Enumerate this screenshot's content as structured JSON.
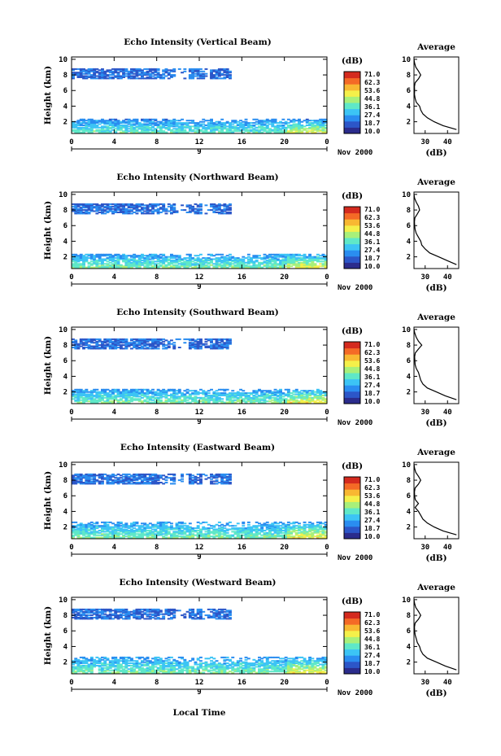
{
  "figure": {
    "x_label": "Local Time",
    "date_label": "Nov 2000",
    "day_label": "9",
    "y_label": "Height (km)",
    "colorbar_title": "(dB)",
    "colorbar_ticks": [
      "71.0",
      "62.3",
      "53.6",
      "44.8",
      "36.1",
      "27.4",
      "18.7",
      "10.0"
    ],
    "colorbar_colors": [
      "#2b2c8c",
      "#2c56c8",
      "#2a8df0",
      "#3cc4f5",
      "#5fe8c8",
      "#a8f07a",
      "#f4f04a",
      "#f8b832",
      "#f46a26",
      "#d42a1e"
    ],
    "avg_title": "Average",
    "avg_xlabel": "(dB)",
    "avg_xticks": [
      "30",
      "40"
    ]
  },
  "chart_data": [
    {
      "type": "heatmap",
      "title": "Echo Intensity (Vertical Beam)",
      "xlabel": "Local Time",
      "ylabel": "Height (km)",
      "x_ticks": [
        "0",
        "4",
        "8",
        "12",
        "16",
        "20",
        "0"
      ],
      "y_ticks": [
        "2",
        "4",
        "6",
        "8",
        "10"
      ],
      "xlim": [
        0,
        24
      ],
      "ylim": [
        0.5,
        10.3
      ],
      "zlim": [
        10.0,
        71.0
      ],
      "z_unit": "dB",
      "layers": [
        {
          "name": "upper",
          "t_start": 0,
          "t_end": 15,
          "h_low": 7.5,
          "h_high": 8.8,
          "db": 22
        },
        {
          "name": "lower",
          "t_start": 0,
          "t_end": 24,
          "h_low": 0.6,
          "h_high": 2.3,
          "db": 36
        }
      ],
      "average_profile": {
        "title": "Average",
        "xlabel": "(dB)",
        "xlim": [
          25,
          45
        ],
        "height": [
          1,
          1.5,
          2,
          2.5,
          3,
          3.5,
          4,
          4.5,
          5,
          5.5,
          6,
          6.5,
          7,
          7.5,
          8,
          8.5,
          9,
          9.5,
          10
        ],
        "db": [
          44,
          38,
          34,
          31,
          29,
          28,
          27.5,
          26,
          25.5,
          25.2,
          25.3,
          25.2,
          25.5,
          27,
          28,
          27,
          25.8,
          25.3,
          25
        ]
      }
    },
    {
      "type": "heatmap",
      "title": "Echo Intensity (Northward Beam)",
      "xlabel": "Local Time",
      "ylabel": "Height (km)",
      "x_ticks": [
        "0",
        "4",
        "8",
        "12",
        "16",
        "20",
        "0"
      ],
      "y_ticks": [
        "2",
        "4",
        "6",
        "8",
        "10"
      ],
      "xlim": [
        0,
        24
      ],
      "ylim": [
        0.5,
        10.3
      ],
      "zlim": [
        10.0,
        71.0
      ],
      "z_unit": "dB",
      "layers": [
        {
          "name": "upper",
          "t_start": 0,
          "t_end": 15,
          "h_low": 7.5,
          "h_high": 8.8,
          "db": 22
        },
        {
          "name": "lower",
          "t_start": 0,
          "t_end": 24,
          "h_low": 0.6,
          "h_high": 2.3,
          "db": 38
        }
      ],
      "average_profile": {
        "title": "Average",
        "xlabel": "(dB)",
        "xlim": [
          25,
          45
        ],
        "height": [
          1,
          1.5,
          2,
          2.5,
          3,
          3.5,
          4,
          4.5,
          5,
          5.5,
          6,
          6.5,
          7,
          7.5,
          8,
          8.5,
          9,
          9.5,
          10
        ],
        "db": [
          44,
          40,
          36,
          32,
          30,
          28.5,
          28,
          27,
          26,
          25.5,
          25.3,
          25.2,
          25.4,
          26.5,
          27.5,
          27,
          26,
          25.3,
          25
        ]
      }
    },
    {
      "type": "heatmap",
      "title": "Echo Intensity (Southward Beam)",
      "xlabel": "Local Time",
      "ylabel": "Height (km)",
      "x_ticks": [
        "0",
        "4",
        "8",
        "12",
        "16",
        "20",
        "0"
      ],
      "y_ticks": [
        "2",
        "4",
        "6",
        "8",
        "10"
      ],
      "xlim": [
        0,
        24
      ],
      "ylim": [
        0.5,
        10.3
      ],
      "zlim": [
        10.0,
        71.0
      ],
      "z_unit": "dB",
      "layers": [
        {
          "name": "upper",
          "t_start": 0,
          "t_end": 15,
          "h_low": 7.5,
          "h_high": 8.8,
          "db": 22
        },
        {
          "name": "lower",
          "t_start": 0,
          "t_end": 24,
          "h_low": 0.6,
          "h_high": 2.3,
          "db": 38
        }
      ],
      "average_profile": {
        "title": "Average",
        "xlabel": "(dB)",
        "xlim": [
          25,
          45
        ],
        "height": [
          1,
          1.5,
          2,
          2.5,
          3,
          3.5,
          4,
          4.5,
          5,
          5.5,
          6,
          6.5,
          7,
          7.5,
          8,
          8.5,
          9,
          9.5,
          10
        ],
        "db": [
          44,
          39,
          35,
          31,
          29,
          28,
          27.5,
          27,
          26,
          25.5,
          25.4,
          25.3,
          25.6,
          27,
          28.5,
          27,
          26,
          25.4,
          25
        ]
      }
    },
    {
      "type": "heatmap",
      "title": "Echo Intensity (Eastward Beam)",
      "xlabel": "Local Time",
      "ylabel": "Height (km)",
      "x_ticks": [
        "0",
        "4",
        "8",
        "12",
        "16",
        "20",
        "0"
      ],
      "y_ticks": [
        "2",
        "4",
        "6",
        "8",
        "10"
      ],
      "xlim": [
        0,
        24
      ],
      "ylim": [
        0.5,
        10.3
      ],
      "zlim": [
        10.0,
        71.0
      ],
      "z_unit": "dB",
      "layers": [
        {
          "name": "upper",
          "t_start": 0,
          "t_end": 15,
          "h_low": 7.5,
          "h_high": 8.8,
          "db": 22
        },
        {
          "name": "lower",
          "t_start": 0,
          "t_end": 24,
          "h_low": 0.6,
          "h_high": 2.6,
          "db": 38
        }
      ],
      "average_profile": {
        "title": "Average",
        "xlabel": "(dB)",
        "xlim": [
          25,
          45
        ],
        "height": [
          1,
          1.5,
          2,
          2.5,
          3,
          3.5,
          4,
          4.5,
          5,
          5.5,
          6,
          6.5,
          7,
          7.5,
          8,
          8.5,
          9,
          9.5,
          10
        ],
        "db": [
          44,
          38,
          34,
          31,
          29,
          28,
          27,
          25.5,
          27,
          25.6,
          25.3,
          25.2,
          25.5,
          27,
          28,
          27,
          25.8,
          25.3,
          25
        ]
      }
    },
    {
      "type": "heatmap",
      "title": "Echo Intensity (Westward Beam)",
      "xlabel": "Local Time",
      "ylabel": "Height (km)",
      "x_ticks": [
        "0",
        "4",
        "8",
        "12",
        "16",
        "20",
        "0"
      ],
      "y_ticks": [
        "2",
        "4",
        "6",
        "8",
        "10"
      ],
      "xlim": [
        0,
        24
      ],
      "ylim": [
        0.5,
        10.3
      ],
      "zlim": [
        10.0,
        71.0
      ],
      "z_unit": "dB",
      "layers": [
        {
          "name": "upper",
          "t_start": 0,
          "t_end": 15,
          "h_low": 7.5,
          "h_high": 8.8,
          "db": 22
        },
        {
          "name": "lower",
          "t_start": 0,
          "t_end": 24,
          "h_low": 0.6,
          "h_high": 2.6,
          "db": 38
        }
      ],
      "average_profile": {
        "title": "Average",
        "xlabel": "(dB)",
        "xlim": [
          25,
          45
        ],
        "height": [
          1,
          1.5,
          2,
          2.5,
          3,
          3.5,
          4,
          4.5,
          5,
          5.5,
          6,
          6.5,
          7,
          7.5,
          8,
          8.5,
          9,
          9.5,
          10
        ],
        "db": [
          44,
          39,
          35,
          31,
          29,
          28,
          27.5,
          26.5,
          26,
          25.5,
          25.3,
          25.2,
          25.5,
          27,
          28,
          27,
          25.8,
          25.3,
          25
        ]
      }
    }
  ]
}
